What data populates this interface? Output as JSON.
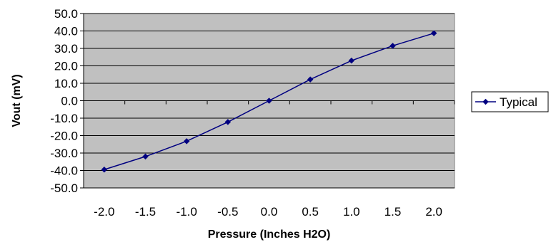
{
  "chart_data": {
    "type": "line",
    "xlabel": "Pressure (Inches H2O)",
    "ylabel": "Vout (mV)",
    "x": [
      -2.0,
      -1.5,
      -1.0,
      -0.5,
      0.0,
      0.5,
      1.0,
      1.5,
      2.0
    ],
    "series": [
      {
        "name": "Typical",
        "values": [
          -39.5,
          -32.0,
          -23.2,
          -12.2,
          0.0,
          12.2,
          23.0,
          31.5,
          38.7
        ]
      }
    ],
    "xlim": [
      -2.0,
      2.0
    ],
    "ylim": [
      -50.0,
      50.0
    ],
    "y_ticks": [
      "50.0",
      "40.0",
      "30.0",
      "20.0",
      "10.0",
      "0.0",
      "-10.0",
      "-20.0",
      "-30.0",
      "-40.0",
      "-50.0"
    ],
    "x_ticks": [
      "-2.0",
      "-1.5",
      "-1.0",
      "-0.5",
      "0.0",
      "0.5",
      "1.0",
      "1.5",
      "2.0"
    ],
    "grid": "horizontal",
    "legend_position": "right",
    "colors": {
      "plot_background": "#c0c0c0",
      "series_line": "#000080",
      "grid": "#000000"
    }
  }
}
